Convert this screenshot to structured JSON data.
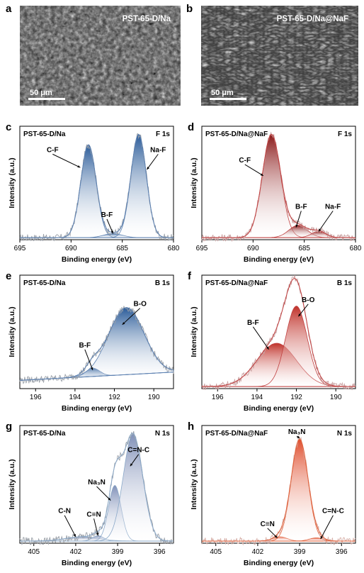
{
  "panels": {
    "a": {
      "letter": "a",
      "label": "PST-65-D/Na",
      "scale": "50 μm"
    },
    "b": {
      "letter": "b",
      "label": "PST-65-D/Na@NaF",
      "scale": "50 μm"
    }
  },
  "chart_data": [
    {
      "id": "c",
      "letter": "c",
      "type": "line",
      "sample": "PST-65-D/Na",
      "element": "F 1s",
      "xlabel": "Binding energy (eV)",
      "ylabel": "Intensity (a.u.)",
      "xlim": [
        695,
        680
      ],
      "xticks": [
        695,
        690,
        685,
        680
      ],
      "ylim": [
        0,
        1.1
      ],
      "palette": {
        "raw": "#9aa0a8",
        "fit": "#5a7fb0",
        "fill": "#2a5b99"
      },
      "peaks": [
        {
          "name": "C-F",
          "center": 688.3,
          "height": 0.9,
          "width": 0.75
        },
        {
          "name": "B-F",
          "center": 685.9,
          "height": 0.04,
          "width": 0.9
        },
        {
          "name": "Na-F",
          "center": 683.4,
          "height": 1.0,
          "width": 0.75
        }
      ],
      "annotations": [
        {
          "text": "C-F",
          "x": 691.8,
          "y": 0.85,
          "ax": 689.1,
          "ay": 0.7
        },
        {
          "text": "B-F",
          "x": 686.5,
          "y": 0.22,
          "ax": 685.9,
          "ay": 0.06
        },
        {
          "text": "Na-F",
          "x": 681.5,
          "y": 0.85,
          "ax": 682.6,
          "ay": 0.68
        }
      ]
    },
    {
      "id": "d",
      "letter": "d",
      "type": "line",
      "sample": "PST-65-D/Na@NaF",
      "element": "F 1s",
      "xlabel": "Binding energy (eV)",
      "ylabel": "Intensity (a.u.)",
      "xlim": [
        695,
        680
      ],
      "xticks": [
        695,
        690,
        685,
        680
      ],
      "ylim": [
        0,
        1.1
      ],
      "palette": {
        "raw": "#c9a0a0",
        "fit": "#c04040",
        "fill": "#8b1a1a"
      },
      "peaks": [
        {
          "name": "C-F",
          "center": 688.2,
          "height": 1.0,
          "width": 0.9
        },
        {
          "name": "B-F",
          "center": 685.6,
          "height": 0.12,
          "width": 0.9
        },
        {
          "name": "Na-F",
          "center": 683.6,
          "height": 0.06,
          "width": 0.7
        }
      ],
      "annotations": [
        {
          "text": "C-F",
          "x": 690.8,
          "y": 0.75,
          "ax": 689.0,
          "ay": 0.62
        },
        {
          "text": "B-F",
          "x": 685.3,
          "y": 0.3,
          "ax": 685.8,
          "ay": 0.12
        },
        {
          "text": "Na-F",
          "x": 682.2,
          "y": 0.3,
          "ax": 683.6,
          "ay": 0.08
        }
      ]
    },
    {
      "id": "e",
      "letter": "e",
      "type": "line",
      "sample": "PST-65-D/Na",
      "element": "B 1s",
      "xlabel": "Binding energy (eV)",
      "ylabel": "Intensity (a.u.)",
      "xlim": [
        196.8,
        189
      ],
      "xticks": [
        196,
        194,
        192,
        190
      ],
      "ylim": [
        0,
        1.1
      ],
      "palette": {
        "raw": "#9aa0a8",
        "fit": "#5a7fb0",
        "fill": "#2a5b99"
      },
      "baseline": [
        0.08,
        0.16
      ],
      "peaks": [
        {
          "name": "B-F",
          "center": 193.1,
          "height": 0.08,
          "width": 0.35
        },
        {
          "name": "B-O",
          "center": 191.4,
          "height": 0.65,
          "width": 0.9
        }
      ],
      "annotations": [
        {
          "text": "B-O",
          "x": 190.7,
          "y": 0.8,
          "ax": 191.6,
          "ay": 0.62
        },
        {
          "text": "B-F",
          "x": 193.5,
          "y": 0.4,
          "ax": 193.1,
          "ay": 0.18
        }
      ]
    },
    {
      "id": "f",
      "letter": "f",
      "type": "line",
      "sample": "PST-65-D/Na@NaF",
      "element": "B 1s",
      "xlabel": "Binding energy (eV)",
      "ylabel": "Intensity (a.u.)",
      "xlim": [
        196.8,
        189
      ],
      "xticks": [
        196,
        194,
        192,
        190
      ],
      "ylim": [
        0,
        1.1
      ],
      "palette": {
        "raw": "#c9a0a0",
        "fit": "#c04040",
        "fill": "#c0322a"
      },
      "peaks": [
        {
          "name": "B-F",
          "center": 193.0,
          "height": 0.42,
          "width": 1.0
        },
        {
          "name": "B-O",
          "center": 192.0,
          "height": 0.78,
          "width": 0.55
        }
      ],
      "annotations": [
        {
          "text": "B-O",
          "x": 191.4,
          "y": 0.84,
          "ax": 191.9,
          "ay": 0.7
        },
        {
          "text": "B-F",
          "x": 194.2,
          "y": 0.62,
          "ax": 193.4,
          "ay": 0.38
        }
      ]
    },
    {
      "id": "g",
      "letter": "g",
      "type": "line",
      "sample": "PST-65-D/Na",
      "element": "N 1s",
      "xlabel": "Binding energy (eV)",
      "ylabel": "Intensity (a.u.)",
      "xlim": [
        406,
        395
      ],
      "xticks": [
        405,
        402,
        399,
        396
      ],
      "ylim": [
        0,
        1.1
      ],
      "palette": {
        "raw": "#9aa0a8",
        "fit": "#8aa8c8",
        "fill": "#8090b8"
      },
      "peaks": [
        {
          "name": "C-N",
          "center": 401.5,
          "height": 0.04,
          "width": 1.2
        },
        {
          "name": "C≡N",
          "center": 400.4,
          "height": 0.05,
          "width": 0.4
        },
        {
          "name": "Na₃N",
          "center": 399.2,
          "height": 0.52,
          "width": 0.45
        },
        {
          "name": "C=N-C",
          "center": 397.9,
          "height": 1.0,
          "width": 0.7
        }
      ],
      "annotations": [
        {
          "text": "C-N",
          "x": 402.8,
          "y": 0.28,
          "ax": 402.0,
          "ay": 0.06
        },
        {
          "text": "C≡N",
          "x": 400.7,
          "y": 0.25,
          "ax": 400.4,
          "ay": 0.07
        },
        {
          "text": "Na₃N",
          "x": 400.5,
          "y": 0.55,
          "ax": 399.5,
          "ay": 0.4
        },
        {
          "text": "C=N-C",
          "x": 397.5,
          "y": 0.85,
          "ax": 398.1,
          "ay": 0.72
        }
      ]
    },
    {
      "id": "h",
      "letter": "h",
      "type": "line",
      "sample": "PST-65-D/Na@NaF",
      "element": "N 1s",
      "xlabel": "Binding energy (eV)",
      "ylabel": "Intensity (a.u.)",
      "xlim": [
        406,
        395
      ],
      "xticks": [
        405,
        402,
        399,
        396
      ],
      "ylim": [
        0,
        1.1
      ],
      "palette": {
        "raw": "#d8b0a8",
        "fit": "#e0603a",
        "fill": "#e05030"
      },
      "peaks": [
        {
          "name": "C≡N",
          "center": 400.4,
          "height": 0.04,
          "width": 0.5
        },
        {
          "name": "Na₃N",
          "center": 399.0,
          "height": 0.95,
          "width": 0.6
        },
        {
          "name": "C=N-C",
          "center": 397.8,
          "height": 0.03,
          "width": 0.5
        }
      ],
      "annotations": [
        {
          "text": "Na₃N",
          "x": 399.2,
          "y": 1.02,
          "ax": 399.0,
          "ay": 0.98
        },
        {
          "text": "C≡N",
          "x": 401.3,
          "y": 0.16,
          "ax": 400.6,
          "ay": 0.05
        },
        {
          "text": "C=N-C",
          "x": 396.6,
          "y": 0.28,
          "ax": 397.5,
          "ay": 0.04
        }
      ]
    }
  ]
}
